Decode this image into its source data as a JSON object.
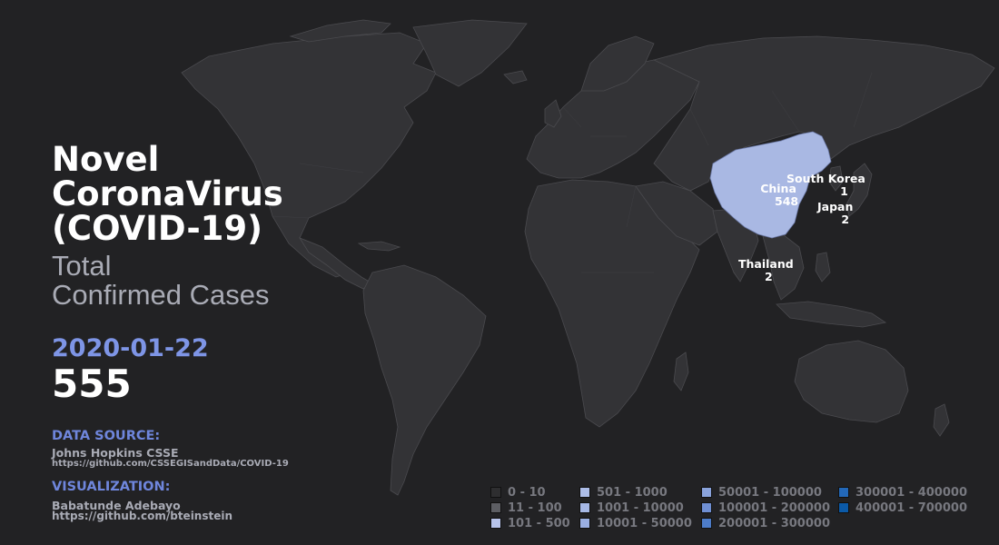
{
  "title": {
    "lines": [
      "Novel",
      "CoronaVirus",
      "(COVID-19)"
    ]
  },
  "subtitle": {
    "lines": [
      "Total",
      "Confirmed Cases"
    ]
  },
  "date": "2020-01-22",
  "total": "555",
  "data_source": {
    "heading": "DATA SOURCE:",
    "name": "Johns Hopkins CSSE",
    "url": "https://github.com/CSSEGISandData/COVID-19"
  },
  "visualization": {
    "heading": "VISUALIZATION:",
    "name": "Babatunde Adebayo",
    "url": "https://github.com/bteinstein"
  },
  "countries": [
    {
      "name": "China",
      "value": "548"
    },
    {
      "name": "South Korea",
      "value": "1"
    },
    {
      "name": "Japan",
      "value": "2"
    },
    {
      "name": "Thailand",
      "value": "2"
    }
  ],
  "legend": [
    {
      "label": "0 - 10",
      "color": "#2e2e30"
    },
    {
      "label": "11 - 100",
      "color": "#5d5e63"
    },
    {
      "label": "101 - 500",
      "color": "#b7c3ea"
    },
    {
      "label": "501 - 1000",
      "color": "#adbde8"
    },
    {
      "label": "1001 - 10000",
      "color": "#a6b8e6"
    },
    {
      "label": "10001 - 50000",
      "color": "#9aafe2"
    },
    {
      "label": "50001 - 100000",
      "color": "#8aa3dc"
    },
    {
      "label": "100001 - 200000",
      "color": "#6f8fd3"
    },
    {
      "label": "200001 - 300000",
      "color": "#4d7cc8"
    },
    {
      "label": "300001 - 400000",
      "color": "#2368b8"
    },
    {
      "label": "400001 - 700000",
      "color": "#0b5aa8"
    }
  ],
  "colors": {
    "background": "#222224",
    "land": "#333336",
    "china": "#a9b8e3",
    "accent": "#7e95e6"
  }
}
